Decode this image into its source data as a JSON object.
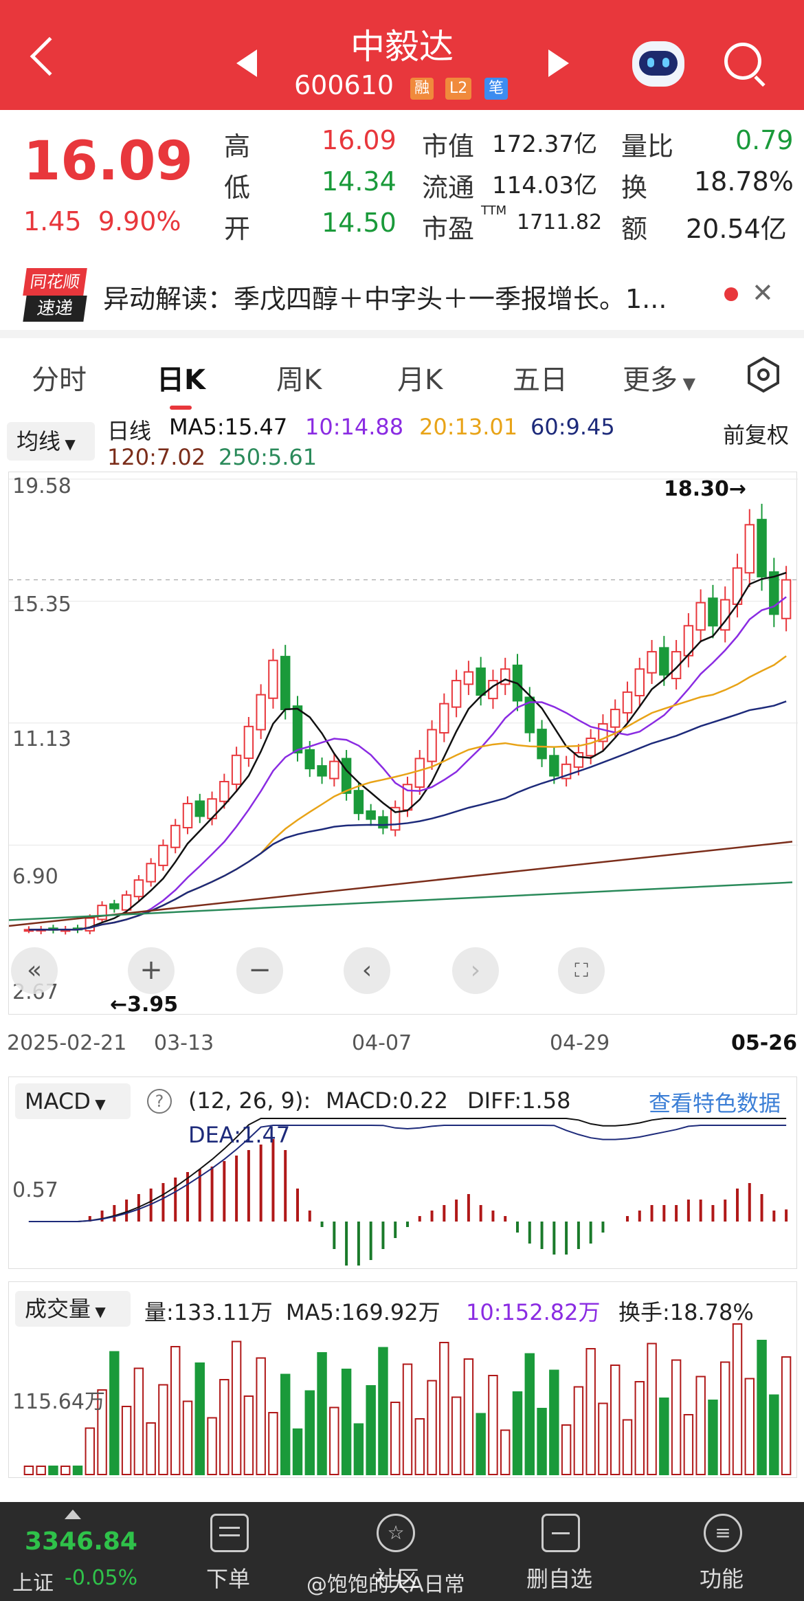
{
  "header": {
    "stock_name": "中毅达",
    "stock_code": "600610",
    "tags": [
      {
        "label": "融",
        "color": "#f08a3c"
      },
      {
        "label": "L2",
        "color": "#f08a3c"
      },
      {
        "label": "笔",
        "color": "#3c8cf0"
      }
    ]
  },
  "quote": {
    "price": "16.09",
    "change": "1.45",
    "change_pct": "9.90%",
    "high_label": "高",
    "high": "16.09",
    "low_label": "低",
    "low": "14.34",
    "open_label": "开",
    "open": "14.50",
    "mktcap_label": "市值",
    "mktcap": "172.37亿",
    "float_label": "流通",
    "float": "114.03亿",
    "pe_label": "市盈",
    "pe_sup": "TTM",
    "pe": "1711.82",
    "vol_ratio_label": "量比",
    "vol_ratio": "0.79",
    "turnover_label": "换",
    "turnover": "18.78%",
    "amount_label": "额",
    "amount": "20.54亿"
  },
  "news": {
    "logo_line1": "同花顺",
    "logo_line2": "速递",
    "text": "异动解读：季戊四醇＋中字头＋一季报增长。1..."
  },
  "tabs": [
    "分时",
    "日K",
    "周K",
    "月K",
    "五日",
    "更多"
  ],
  "active_tab": "日K",
  "ma_legend": {
    "dropdown": "均线",
    "line_type": "日线",
    "ma5": "MA5:15.47",
    "ma10": "10:14.88",
    "ma20": "20:13.01",
    "ma60": "60:9.45",
    "ma120": "120:7.02",
    "ma250": "250:5.61",
    "adjust": "前复权"
  },
  "kline": {
    "y_labels": [
      "19.58",
      "15.35",
      "11.13",
      "6.90",
      "2.67"
    ],
    "x_labels": [
      "2025-02-21",
      "03-13",
      "04-07",
      "04-29",
      "05-26"
    ],
    "high_mark": "18.30→",
    "low_mark": "←3.95"
  },
  "macd": {
    "dropdown": "MACD",
    "params": "(12, 26, 9):",
    "macd": "MACD:0.22",
    "diff": "DIFF:1.58",
    "dea": "DEA:1.47",
    "link": "查看特色数据",
    "y_label": "0.57"
  },
  "volume": {
    "dropdown": "成交量",
    "vol": "量:133.11万",
    "ma5": "MA5:169.92万",
    "ma10": "10:152.82万",
    "turnover": "换手:18.78%",
    "y_label": "115.64万"
  },
  "bottom": {
    "index_value": "3346.84",
    "index_name": "上证",
    "index_change": "-0.05%",
    "items": [
      "下单",
      "社区",
      "删自选",
      "功能"
    ],
    "watermark": "@饱饱的大A日常"
  },
  "colors": {
    "up": "#e8373c",
    "down": "#1a9a3a",
    "ma5": "#111111",
    "ma10": "#8a2be2",
    "ma20": "#e8a317",
    "ma60": "#1d2a7a",
    "ma120": "#7b2d1a",
    "ma250": "#2a8a5a"
  },
  "chart_data": {
    "type": "candlestick",
    "closes": [
      3.97,
      3.98,
      3.96,
      3.98,
      3.97,
      4.37,
      4.81,
      4.7,
      5.17,
      5.69,
      6.26,
      6.89,
      7.58,
      8.34,
      7.9,
      8.5,
      9.1,
      10.01,
      11.01,
      12.11,
      13.3,
      11.6,
      10.1,
      9.55,
      9.3,
      9.8,
      8.7,
      8.0,
      7.8,
      7.5,
      8.2,
      9.0,
      9.9,
      10.9,
      11.8,
      12.6,
      12.9,
      12.1,
      12.6,
      13.0,
      11.9,
      10.8,
      9.9,
      9.3,
      9.7,
      10.1,
      10.6,
      11.1,
      11.6,
      12.2,
      13.0,
      13.6,
      12.8,
      13.6,
      14.5,
      15.3,
      14.5,
      15.4,
      16.5,
      18.0,
      16.2,
      14.9,
      16.09
    ],
    "volume_colors_up_ratio": "mostly up"
  }
}
